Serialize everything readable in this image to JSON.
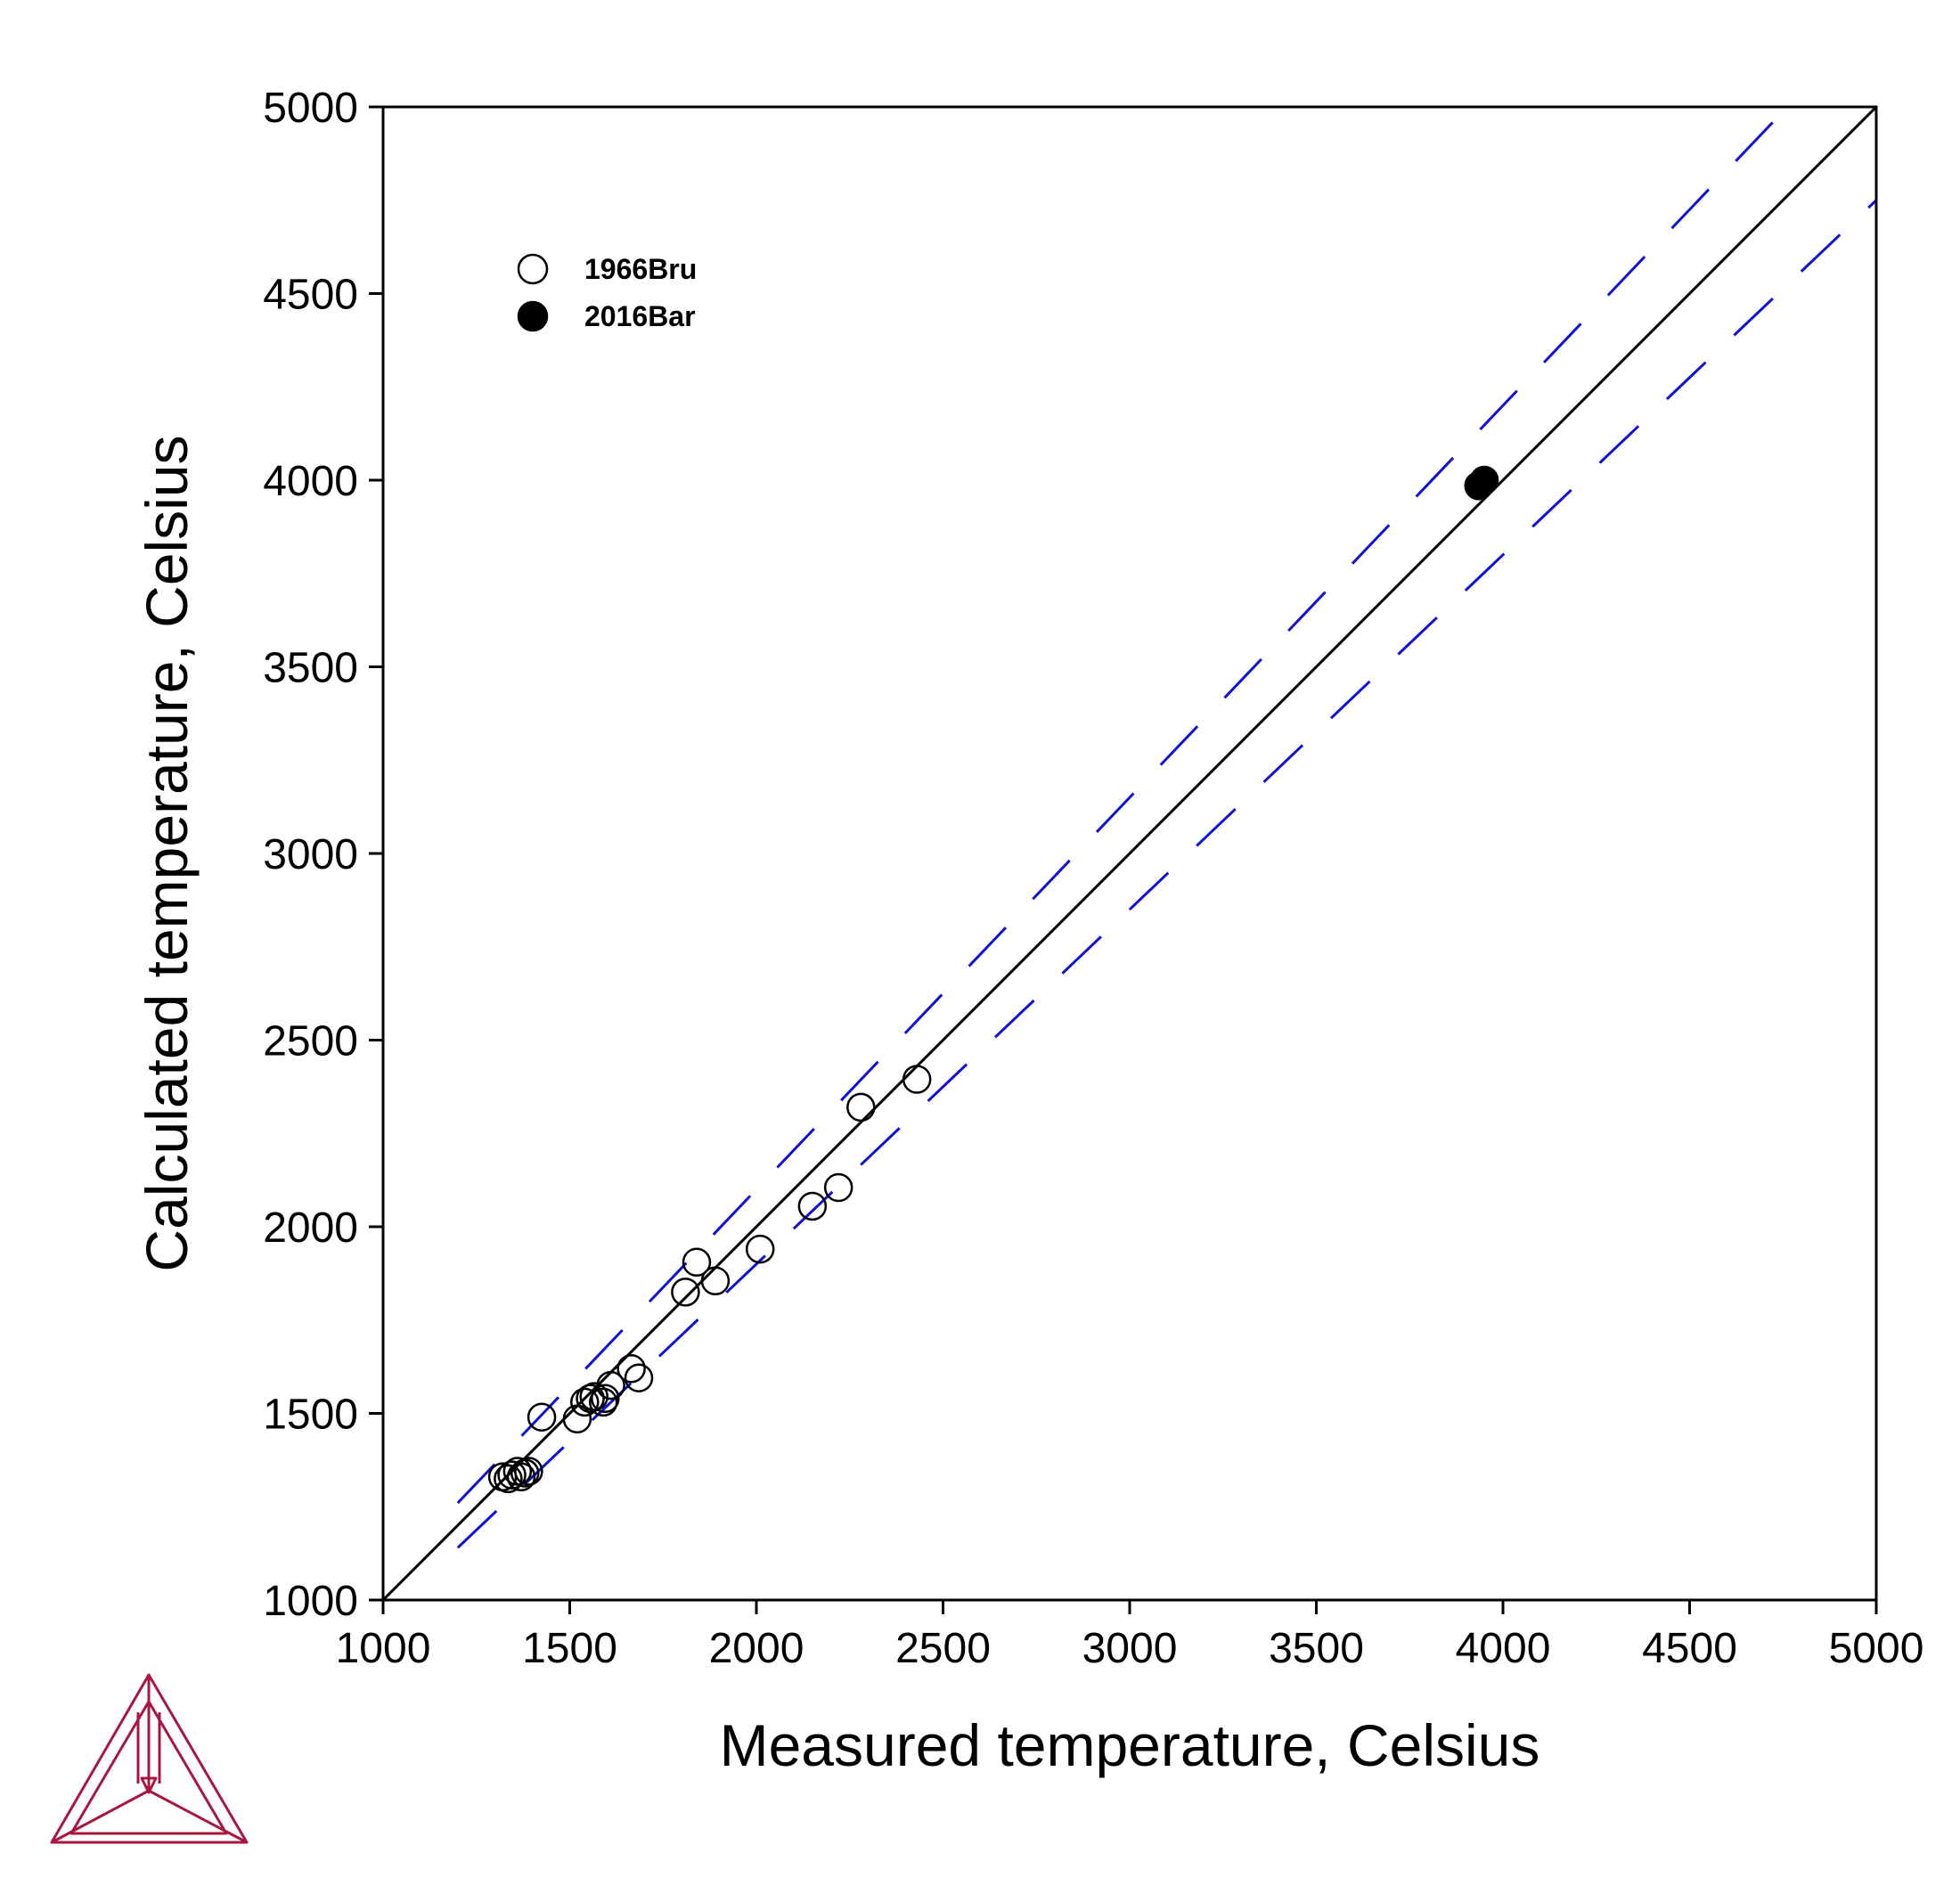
{
  "chart_data": {
    "type": "scatter",
    "xlabel": "Measured temperature, Celsius",
    "ylabel": "Calculated temperature, Celsius",
    "xlim": [
      1000,
      5000
    ],
    "ylim": [
      1000,
      5000
    ],
    "xticks": [
      "1000",
      "1500",
      "2000",
      "2500",
      "3000",
      "3500",
      "4000",
      "4500",
      "5000"
    ],
    "yticks": [
      "1000",
      "1500",
      "2000",
      "2500",
      "3000",
      "3500",
      "4000",
      "4500",
      "5000"
    ],
    "grid": false,
    "legend_position": "top-left",
    "series": [
      {
        "name": "1966Bru",
        "marker": "open-circle",
        "points": [
          [
            1320,
            1330
          ],
          [
            1335,
            1325
          ],
          [
            1345,
            1335
          ],
          [
            1360,
            1345
          ],
          [
            1370,
            1330
          ],
          [
            1380,
            1340
          ],
          [
            1390,
            1345
          ],
          [
            1425,
            1490
          ],
          [
            1520,
            1485
          ],
          [
            1540,
            1530
          ],
          [
            1555,
            1540
          ],
          [
            1565,
            1545
          ],
          [
            1590,
            1530
          ],
          [
            1595,
            1540
          ],
          [
            1610,
            1575
          ],
          [
            1665,
            1620
          ],
          [
            1685,
            1595
          ],
          [
            1810,
            1825
          ],
          [
            1840,
            1905
          ],
          [
            1890,
            1855
          ],
          [
            2010,
            1940
          ],
          [
            2150,
            2055
          ],
          [
            2220,
            2105
          ],
          [
            2280,
            2320
          ],
          [
            2430,
            2395
          ]
        ]
      },
      {
        "name": "2016Bar",
        "marker": "filled-circle",
        "points": [
          [
            3935,
            3985
          ],
          [
            3950,
            4000
          ]
        ]
      }
    ],
    "reference_lines": [
      {
        "kind": "identity",
        "style": "solid",
        "color": "#000000"
      },
      {
        "kind": "+5%",
        "style": "dashed",
        "color": "#1010d8"
      },
      {
        "kind": "-5%",
        "style": "dashed",
        "color": "#1010d8"
      }
    ]
  },
  "logo": {
    "name": "thermo-calc-logo-icon",
    "color": "#a8173f"
  }
}
